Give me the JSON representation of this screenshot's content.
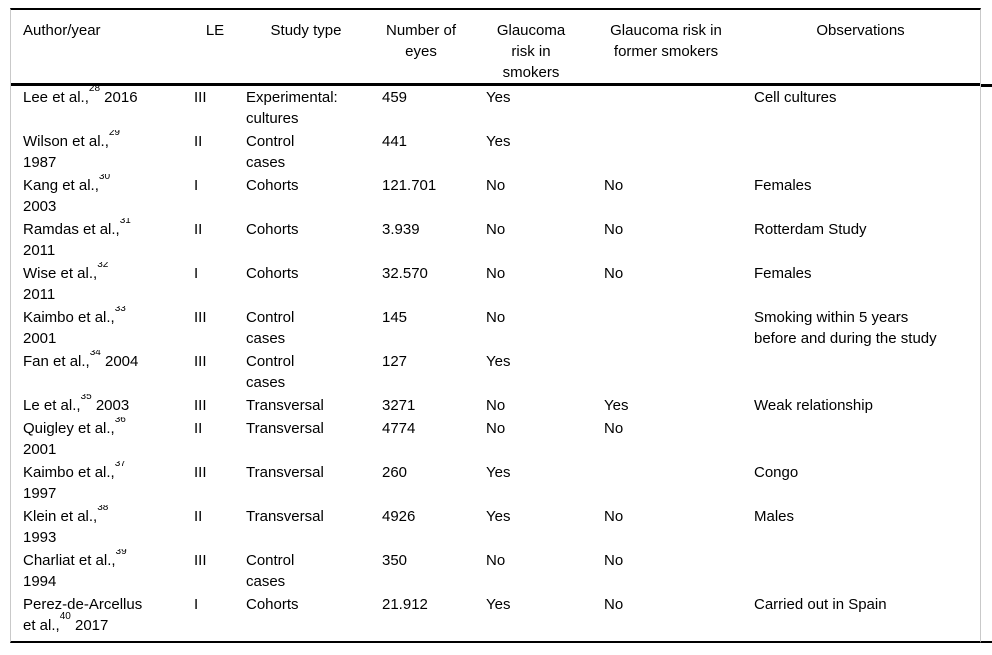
{
  "colors": {
    "text": "#000000",
    "horizontal_rule": "#000000",
    "vertical_border": "#c9c9c9",
    "background": "#ffffff"
  },
  "table": {
    "columns": [
      {
        "key": "author",
        "label": "Author/year"
      },
      {
        "key": "le",
        "label": "LE"
      },
      {
        "key": "study",
        "label": "Study type"
      },
      {
        "key": "eyes",
        "label": "Number of\neyes"
      },
      {
        "key": "smokers",
        "label": "Glaucoma\nrisk in\nsmokers"
      },
      {
        "key": "former",
        "label": "Glaucoma risk in\nformer smokers"
      },
      {
        "key": "obs",
        "label": "Observations"
      }
    ],
    "rows": [
      {
        "author": [
          {
            "text": "Lee et al.,"
          },
          {
            "sup": "28"
          },
          {
            "text": " 2016"
          }
        ],
        "le": "III",
        "study": "Experimental:\ncultures",
        "eyes": "459",
        "smokers": "Yes",
        "former": "",
        "obs": "Cell cultures"
      },
      {
        "author": [
          {
            "text": "Wilson et al.,"
          },
          {
            "sup": "29"
          },
          {
            "text": "\n1987"
          }
        ],
        "le": "II",
        "study": "Control\ncases",
        "eyes": "441",
        "smokers": "Yes",
        "former": "",
        "obs": ""
      },
      {
        "author": [
          {
            "text": "Kang et al.,"
          },
          {
            "sup": "30"
          },
          {
            "text": "\n2003"
          }
        ],
        "le": "I",
        "study": "Cohorts",
        "eyes": "121.701",
        "smokers": "No",
        "former": "No",
        "obs": "Females"
      },
      {
        "author": [
          {
            "text": "Ramdas et al.,"
          },
          {
            "sup": "31"
          },
          {
            "text": "\n2011"
          }
        ],
        "le": "II",
        "study": "Cohorts",
        "eyes": "3.939",
        "smokers": "No",
        "former": "No",
        "obs": "Rotterdam Study"
      },
      {
        "author": [
          {
            "text": "Wise et al.,"
          },
          {
            "sup": "32"
          },
          {
            "text": "\n2011"
          }
        ],
        "le": "I",
        "study": "Cohorts",
        "eyes": "32.570",
        "smokers": "No",
        "former": "No",
        "obs": "Females"
      },
      {
        "author": [
          {
            "text": "Kaimbo et al.,"
          },
          {
            "sup": "33"
          },
          {
            "text": "\n2001"
          }
        ],
        "le": "III",
        "study": "Control\ncases",
        "eyes": "145",
        "smokers": "No",
        "former": "",
        "obs": "Smoking within 5 years\nbefore and during the study"
      },
      {
        "author": [
          {
            "text": "Fan et al.,"
          },
          {
            "sup": "34"
          },
          {
            "text": " 2004"
          }
        ],
        "le": "III",
        "study": "Control\ncases",
        "eyes": "127",
        "smokers": "Yes",
        "former": "",
        "obs": ""
      },
      {
        "author": [
          {
            "text": "Le et al.,"
          },
          {
            "sup": "35"
          },
          {
            "text": " 2003"
          }
        ],
        "le": "III",
        "study": "Transversal",
        "eyes": "3271",
        "smokers": "No",
        "former": "Yes",
        "obs": "Weak relationship"
      },
      {
        "author": [
          {
            "text": "Quigley et al.,"
          },
          {
            "sup": "36"
          },
          {
            "text": "\n2001"
          }
        ],
        "le": "II",
        "study": "Transversal",
        "eyes": "4774",
        "smokers": "No",
        "former": "No",
        "obs": ""
      },
      {
        "author": [
          {
            "text": "Kaimbo et al.,"
          },
          {
            "sup": "37"
          },
          {
            "text": "\n1997"
          }
        ],
        "le": "III",
        "study": "Transversal",
        "eyes": "260",
        "smokers": "Yes",
        "former": "",
        "obs": "Congo"
      },
      {
        "author": [
          {
            "text": "Klein et al.,"
          },
          {
            "sup": "38"
          },
          {
            "text": "\n1993"
          }
        ],
        "le": "II",
        "study": "Transversal",
        "eyes": "4926",
        "smokers": "Yes",
        "former": "No",
        "obs": "Males"
      },
      {
        "author": [
          {
            "text": "Charliat et al.,"
          },
          {
            "sup": "39"
          },
          {
            "text": "\n1994"
          }
        ],
        "le": "III",
        "study": "Control\ncases",
        "eyes": "350",
        "smokers": "No",
        "former": "No",
        "obs": ""
      },
      {
        "author": [
          {
            "text": "Perez-de-Arcellus\net al.,"
          },
          {
            "sup": "40"
          },
          {
            "text": " 2017"
          }
        ],
        "le": "I",
        "study": "Cohorts",
        "eyes": "21.912",
        "smokers": "Yes",
        "former": "No",
        "obs": "Carried out in Spain"
      }
    ]
  }
}
